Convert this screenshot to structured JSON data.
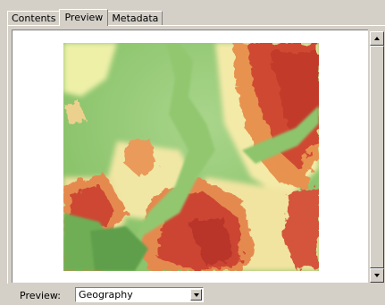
{
  "tabs": [
    {
      "label": "Contents",
      "active": false
    },
    {
      "label": "Preview",
      "active": true
    },
    {
      "label": "Metadata",
      "active": false
    }
  ],
  "preview": {
    "image_icon": "elevation-raster-image",
    "label": "Preview:",
    "selected": "Geography"
  },
  "colors": {
    "low": "#7cb860",
    "mid_low": "#a8d48a",
    "mid": "#f4eaa8",
    "high": "#e07a4a",
    "peak": "#c8382a"
  }
}
